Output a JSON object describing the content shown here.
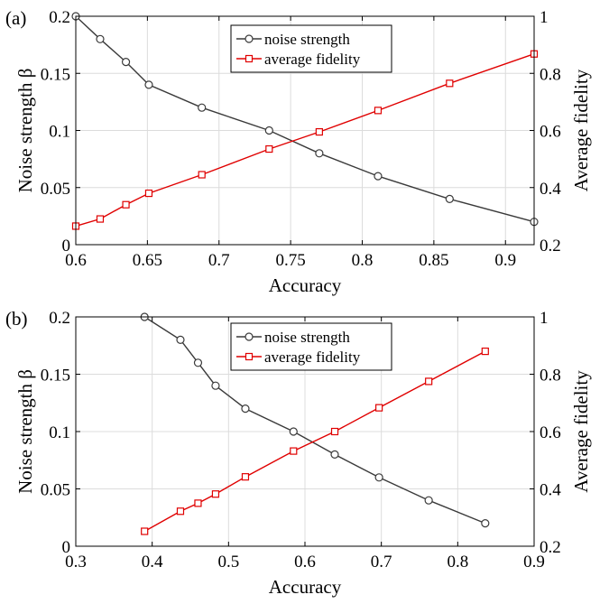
{
  "chart_data": [
    {
      "type": "line",
      "panel_label": "(a)",
      "xlabel": "Accuracy",
      "ylabel_left": "Noise strength β",
      "ylabel_right": "Average fidelity",
      "xlim": [
        0.6,
        0.92
      ],
      "ylim_left": [
        0,
        0.2
      ],
      "ylim_right": [
        0.2,
        1
      ],
      "xticks": [
        0.6,
        0.65,
        0.7,
        0.75,
        0.8,
        0.85,
        0.9
      ],
      "xtick_labels": [
        "0.6",
        "0.65",
        "0.7",
        "0.75",
        "0.8",
        "0.85",
        "0.9"
      ],
      "yticks_left": [
        0,
        0.05,
        0.1,
        0.15,
        0.2
      ],
      "ytick_labels_left": [
        "0",
        "0.05",
        "0.1",
        "0.15",
        "0.2"
      ],
      "yticks_right": [
        0.2,
        0.4,
        0.6,
        0.8,
        1
      ],
      "ytick_labels_right": [
        "0.2",
        "0.4",
        "0.6",
        "0.8",
        "1"
      ],
      "grid": true,
      "legend_position": "top-center",
      "series": [
        {
          "name": "noise strength",
          "axis": "left",
          "color": "#3a3a3a",
          "marker": "circle",
          "x": [
            0.6,
            0.617,
            0.635,
            0.651,
            0.688,
            0.735,
            0.77,
            0.811,
            0.861,
            0.92
          ],
          "y": [
            0.2,
            0.18,
            0.16,
            0.14,
            0.12,
            0.1,
            0.08,
            0.06,
            0.04,
            0.02
          ]
        },
        {
          "name": "average fidelity",
          "axis": "right",
          "color": "#e00000",
          "marker": "square",
          "x": [
            0.6,
            0.617,
            0.635,
            0.651,
            0.688,
            0.735,
            0.77,
            0.811,
            0.861,
            0.92
          ],
          "y": [
            0.265,
            0.29,
            0.34,
            0.38,
            0.445,
            0.535,
            0.595,
            0.67,
            0.765,
            0.868
          ]
        }
      ]
    },
    {
      "type": "line",
      "panel_label": "(b)",
      "xlabel": "Accuracy",
      "ylabel_left": "Noise strength β",
      "ylabel_right": "Average fidelity",
      "xlim": [
        0.3,
        0.9
      ],
      "ylim_left": [
        0,
        0.2
      ],
      "ylim_right": [
        0.2,
        1
      ],
      "xticks": [
        0.3,
        0.4,
        0.5,
        0.6,
        0.7,
        0.8,
        0.9
      ],
      "xtick_labels": [
        "0.3",
        "0.4",
        "0.5",
        "0.6",
        "0.7",
        "0.8",
        "0.9"
      ],
      "yticks_left": [
        0,
        0.05,
        0.1,
        0.15,
        0.2
      ],
      "ytick_labels_left": [
        "0",
        "0.05",
        "0.1",
        "0.15",
        "0.2"
      ],
      "yticks_right": [
        0.2,
        0.4,
        0.6,
        0.8,
        1
      ],
      "ytick_labels_right": [
        "0.2",
        "0.4",
        "0.6",
        "0.8",
        "1"
      ],
      "grid": true,
      "legend_position": "top-center",
      "series": [
        {
          "name": "noise strength",
          "axis": "left",
          "color": "#3a3a3a",
          "marker": "circle",
          "x": [
            0.39,
            0.437,
            0.46,
            0.483,
            0.522,
            0.585,
            0.639,
            0.697,
            0.762,
            0.836
          ],
          "y": [
            0.2,
            0.18,
            0.16,
            0.14,
            0.12,
            0.1,
            0.08,
            0.06,
            0.04,
            0.02
          ]
        },
        {
          "name": "average fidelity",
          "axis": "right",
          "color": "#e00000",
          "marker": "square",
          "x": [
            0.39,
            0.437,
            0.46,
            0.483,
            0.522,
            0.585,
            0.639,
            0.697,
            0.762,
            0.836
          ],
          "y": [
            0.252,
            0.322,
            0.35,
            0.382,
            0.442,
            0.532,
            0.6,
            0.683,
            0.775,
            0.88
          ]
        }
      ]
    }
  ]
}
